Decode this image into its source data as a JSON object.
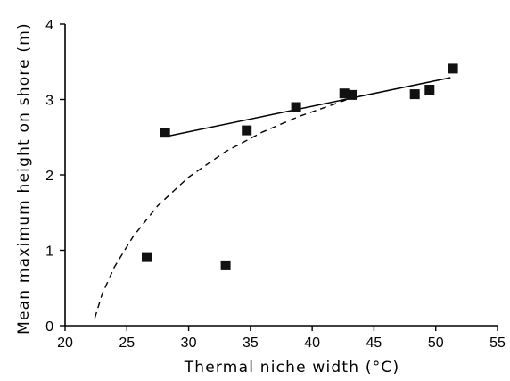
{
  "chart_data": {
    "type": "scatter",
    "title": "",
    "xlabel": "Thermal niche width (°C)",
    "ylabel": "Mean maximum height on shore (m)",
    "xlim": [
      20,
      55
    ],
    "ylim": [
      0,
      4
    ],
    "xticks": [
      "20",
      "25",
      "30",
      "35",
      "40",
      "45",
      "50",
      "55"
    ],
    "yticks": [
      "0",
      "1",
      "2",
      "3",
      "4"
    ],
    "grid": false,
    "legend": "none",
    "points": [
      {
        "x": 26.6,
        "y": 0.91
      },
      {
        "x": 28.1,
        "y": 2.56
      },
      {
        "x": 33.0,
        "y": 0.8
      },
      {
        "x": 34.7,
        "y": 2.59
      },
      {
        "x": 38.7,
        "y": 2.9
      },
      {
        "x": 42.6,
        "y": 3.08
      },
      {
        "x": 43.2,
        "y": 3.06
      },
      {
        "x": 48.3,
        "y": 3.07
      },
      {
        "x": 49.5,
        "y": 3.13
      },
      {
        "x": 51.4,
        "y": 3.41
      }
    ],
    "fit_lines": [
      {
        "style": "solid",
        "x": [
          28.2,
          51.2
        ],
        "y": [
          2.51,
          3.29
        ]
      },
      {
        "style": "dashed",
        "x": [
          22.4,
          23.0,
          24.0,
          25.5,
          27.5,
          30.0,
          33.0,
          36.0,
          39.0,
          42.0,
          43.5
        ],
        "y": [
          0.1,
          0.42,
          0.78,
          1.18,
          1.59,
          1.97,
          2.31,
          2.57,
          2.78,
          2.95,
          3.04
        ]
      }
    ]
  }
}
